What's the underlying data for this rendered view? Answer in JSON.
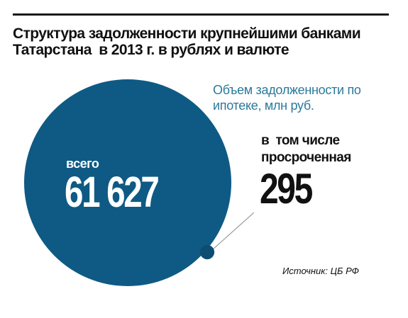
{
  "header": {
    "title_line1": "Структура задолженности крупнейшими банками",
    "title_line2": "Татарстана  в 2013 г. в рублях и валюте"
  },
  "chart_data": {
    "type": "bubble",
    "subtitle_line1": "Объем задолженности по",
    "subtitle_line2": "ипотеке, млн руб.",
    "unit": "млн руб.",
    "series": [
      {
        "name": "всего",
        "value": 61627,
        "label": "61 627",
        "color": "#0e5a84"
      },
      {
        "name": "в  том числе просроченная",
        "value": 295,
        "label": "295",
        "color": "#0e4d72"
      }
    ],
    "total_label": "всего",
    "overdue_label_line1": "в  том числе",
    "overdue_label_line2": "просроченная",
    "leader_line_color": "#8a8a8a"
  },
  "footer": {
    "source": "Источник: ЦБ РФ"
  }
}
